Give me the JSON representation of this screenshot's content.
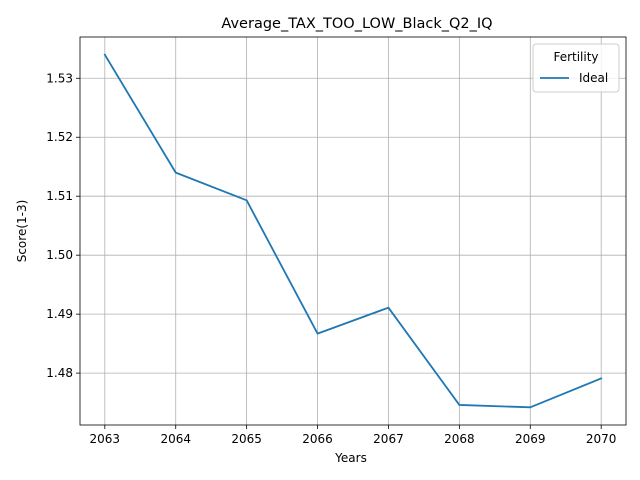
{
  "chart_data": {
    "type": "line",
    "title": "Average_TAX_TOO_LOW_Black_Q2_IQ",
    "xlabel": "Years",
    "ylabel": "Score(1-3)",
    "x": [
      2063,
      2064,
      2065,
      2066,
      2067,
      2068,
      2069,
      2070
    ],
    "xticks": [
      "2063",
      "2064",
      "2065",
      "2066",
      "2067",
      "2068",
      "2069",
      "2070"
    ],
    "yticks": [
      "1.48",
      "1.49",
      "1.50",
      "1.51",
      "1.52",
      "1.53"
    ],
    "ylim": [
      1.4712,
      1.537
    ],
    "grid": true,
    "legend": {
      "title": "Fertility",
      "placement": "top-right"
    },
    "series": [
      {
        "name": "Ideal",
        "color": "#1f77b4",
        "values": [
          1.534,
          1.514,
          1.5093,
          1.4867,
          1.4911,
          1.4746,
          1.4742,
          1.4791
        ]
      }
    ]
  }
}
